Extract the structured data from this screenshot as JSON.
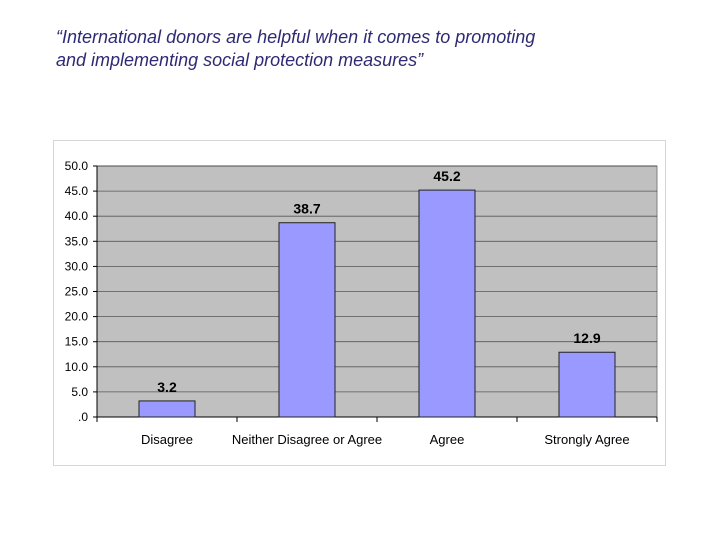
{
  "slide": {
    "title_line1": "“International donors are helpful when it comes to promoting",
    "title_line2": "and implementing social protection measures”"
  },
  "colors": {
    "title": "#2e2a73",
    "plot_background": "#c0c0c0",
    "bar_fill": "#9999ff",
    "bar_stroke": "#222222",
    "grid": "#000000"
  },
  "chart_data": {
    "type": "bar",
    "title": "",
    "xlabel": "",
    "ylabel": "",
    "categories": [
      "Disagree",
      "Neither Disagree or Agree",
      "Agree",
      "Strongly Agree"
    ],
    "values": [
      3.2,
      38.7,
      45.2,
      12.9
    ],
    "data_labels": [
      "3.2",
      "38.7",
      "45.2",
      "12.9"
    ],
    "ylim": [
      0,
      50
    ],
    "yticks": [
      0,
      5,
      10,
      15,
      20,
      25,
      30,
      35,
      40,
      45,
      50
    ],
    "ytick_labels": [
      ".0",
      "5.0",
      "10.0",
      "15.0",
      "20.0",
      "25.0",
      "30.0",
      "35.0",
      "40.0",
      "45.0",
      "50.0"
    ],
    "grid": true,
    "legend": "none"
  }
}
